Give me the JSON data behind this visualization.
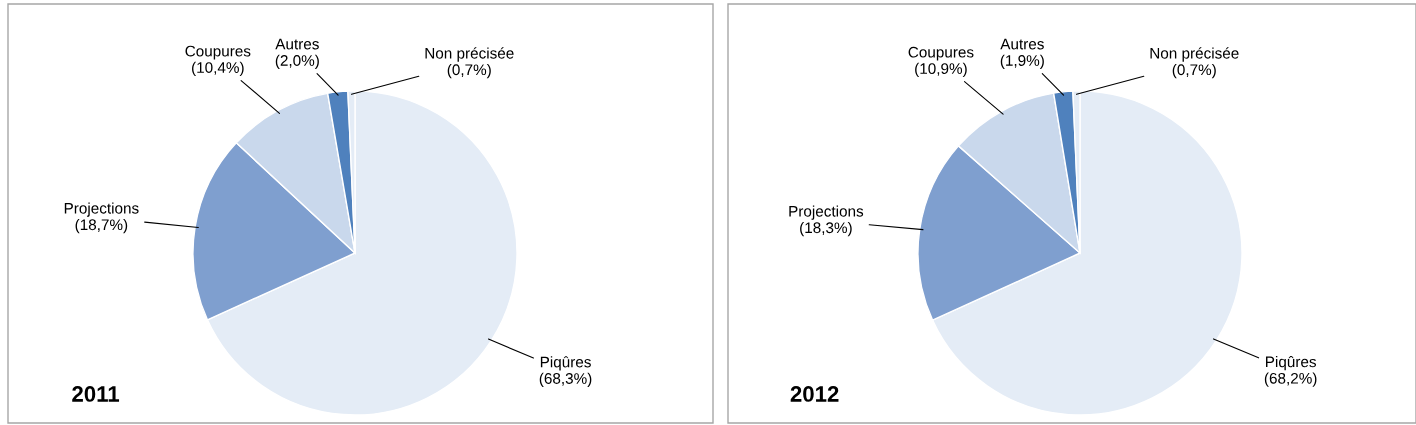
{
  "chart_data": [
    {
      "type": "pie",
      "title": "2011",
      "categories": [
        "Piqûres",
        "Projections",
        "Coupures",
        "Autres",
        "Non précisée"
      ],
      "values": [
        68.3,
        18.7,
        10.4,
        2.0,
        0.7
      ],
      "value_labels": [
        "(68,3%)",
        "(18,7%)",
        "(10,4%)",
        "(2,0%)",
        "(0,7%)"
      ],
      "colors": [
        "#e4ecf6",
        "#7f9fcf",
        "#c9d8ec",
        "#4f81bd",
        "#e4ecf6"
      ]
    },
    {
      "type": "pie",
      "title": "2012",
      "categories": [
        "Piqûres",
        "Projections",
        "Coupures",
        "Autres",
        "Non précisée"
      ],
      "values": [
        68.2,
        18.3,
        10.9,
        1.9,
        0.7
      ],
      "value_labels": [
        "(68,2%)",
        "(18,3%)",
        "(10,9%)",
        "(1,9%)",
        "(0,7%)"
      ],
      "colors": [
        "#e4ecf6",
        "#7f9fcf",
        "#c9d8ec",
        "#4f81bd",
        "#e4ecf6"
      ]
    }
  ]
}
